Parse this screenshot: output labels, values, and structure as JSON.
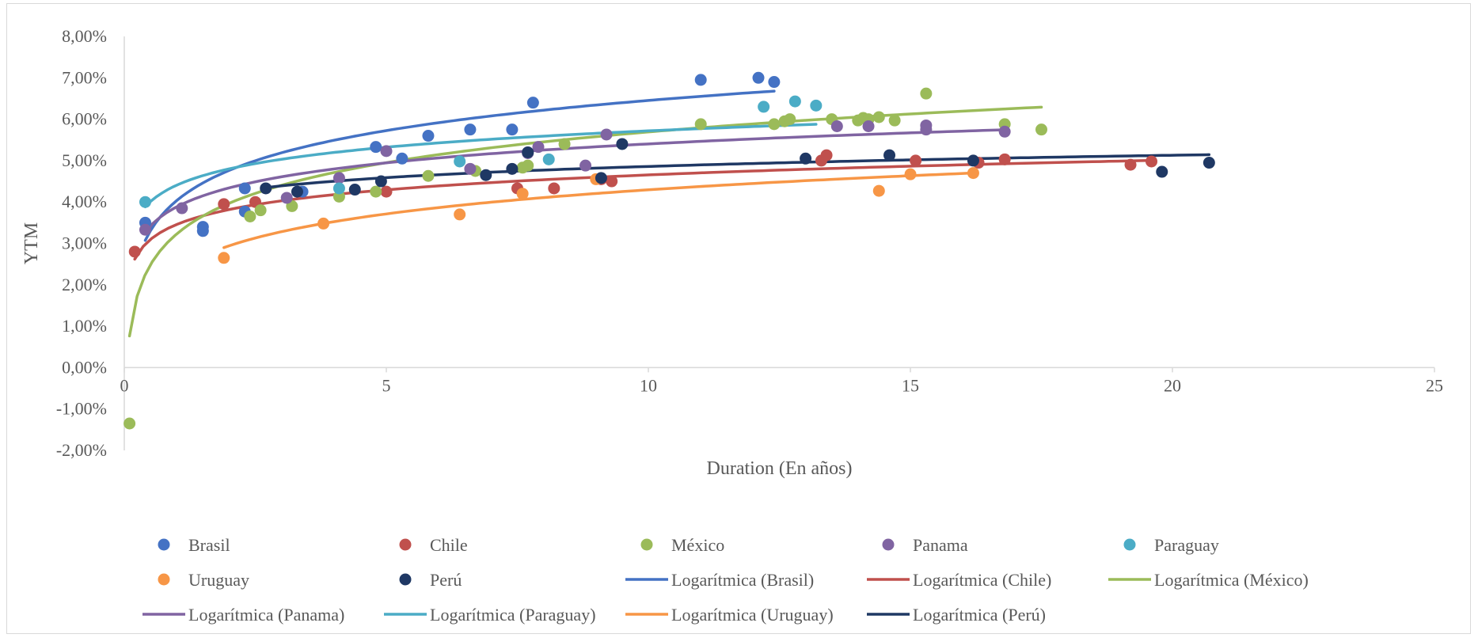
{
  "chart_data": {
    "type": "scatter",
    "title": "",
    "xlabel": "Duration (En años)",
    "ylabel": "YTM",
    "xlim": [
      0,
      25
    ],
    "ylim": [
      -0.02,
      0.08
    ],
    "x_ticks": [
      0,
      5,
      10,
      15,
      20,
      25
    ],
    "x_tick_labels": [
      "0",
      "5",
      "10",
      "15",
      "20",
      "25"
    ],
    "y_ticks": [
      -0.02,
      -0.01,
      0,
      0.01,
      0.02,
      0.03,
      0.04,
      0.05,
      0.06,
      0.07,
      0.08
    ],
    "y_tick_labels": [
      "-2,00%",
      "-1,00%",
      "0,00%",
      "1,00%",
      "2,00%",
      "3,00%",
      "4,00%",
      "5,00%",
      "6,00%",
      "7,00%",
      "8,00%"
    ],
    "grid": false,
    "legend_position": "bottom",
    "series": [
      {
        "name": "Brasil",
        "color": "#4472c4",
        "points": [
          [
            0.4,
            0.035
          ],
          [
            1.5,
            0.034
          ],
          [
            1.5,
            0.033
          ],
          [
            2.3,
            0.0433
          ],
          [
            2.3,
            0.0377
          ],
          [
            3.4,
            0.0425
          ],
          [
            4.8,
            0.0533
          ],
          [
            5.3,
            0.0505
          ],
          [
            5.8,
            0.056
          ],
          [
            6.6,
            0.0575
          ],
          [
            7.4,
            0.0575
          ],
          [
            7.8,
            0.064
          ],
          [
            11.0,
            0.0695
          ],
          [
            12.1,
            0.07
          ],
          [
            12.4,
            0.069
          ]
        ]
      },
      {
        "name": "Chile",
        "color": "#c0504d",
        "points": [
          [
            0.2,
            0.028
          ],
          [
            1.9,
            0.0395
          ],
          [
            2.5,
            0.04
          ],
          [
            5.0,
            0.0425
          ],
          [
            7.5,
            0.0433
          ],
          [
            8.2,
            0.0433
          ],
          [
            9.1,
            0.0455
          ],
          [
            9.3,
            0.045
          ],
          [
            13.3,
            0.05
          ],
          [
            13.4,
            0.0513
          ],
          [
            15.1,
            0.05
          ],
          [
            16.3,
            0.0495
          ],
          [
            16.8,
            0.0503
          ],
          [
            19.2,
            0.049
          ],
          [
            19.6,
            0.0498
          ]
        ]
      },
      {
        "name": "México",
        "color": "#9bbb59",
        "points": [
          [
            0.1,
            -0.0135
          ],
          [
            2.4,
            0.0365
          ],
          [
            2.6,
            0.038
          ],
          [
            3.2,
            0.039
          ],
          [
            4.1,
            0.0413
          ],
          [
            4.8,
            0.0425
          ],
          [
            5.8,
            0.0463
          ],
          [
            6.7,
            0.0475
          ],
          [
            7.6,
            0.0483
          ],
          [
            7.7,
            0.0488
          ],
          [
            8.4,
            0.054
          ],
          [
            11.0,
            0.0588
          ],
          [
            12.4,
            0.0588
          ],
          [
            12.6,
            0.0595
          ],
          [
            12.7,
            0.06
          ],
          [
            13.5,
            0.06
          ],
          [
            14.0,
            0.0597
          ],
          [
            14.1,
            0.0603
          ],
          [
            14.2,
            0.06
          ],
          [
            14.4,
            0.0605
          ],
          [
            14.7,
            0.0597
          ],
          [
            15.3,
            0.0662
          ],
          [
            16.8,
            0.0588
          ],
          [
            17.5,
            0.0575
          ]
        ]
      },
      {
        "name": "Panama",
        "color": "#8064a2",
        "points": [
          [
            0.4,
            0.0333
          ],
          [
            1.1,
            0.0385
          ],
          [
            3.1,
            0.041
          ],
          [
            4.1,
            0.0458
          ],
          [
            5.0,
            0.0523
          ],
          [
            6.6,
            0.048
          ],
          [
            7.7,
            0.0518
          ],
          [
            7.9,
            0.0533
          ],
          [
            8.8,
            0.0488
          ],
          [
            9.2,
            0.0563
          ],
          [
            13.6,
            0.0583
          ],
          [
            14.2,
            0.0583
          ],
          [
            15.3,
            0.0585
          ],
          [
            15.3,
            0.0575
          ],
          [
            16.8,
            0.057
          ]
        ]
      },
      {
        "name": "Paraguay",
        "color": "#4bacc6",
        "points": [
          [
            0.4,
            0.04
          ],
          [
            4.1,
            0.0433
          ],
          [
            6.4,
            0.0498
          ],
          [
            8.1,
            0.0503
          ],
          [
            12.2,
            0.063
          ],
          [
            12.8,
            0.0643
          ],
          [
            13.2,
            0.0633
          ]
        ]
      },
      {
        "name": "Uruguay",
        "color": "#f79646",
        "points": [
          [
            1.9,
            0.0265
          ],
          [
            3.8,
            0.0348
          ],
          [
            6.4,
            0.037
          ],
          [
            7.6,
            0.042
          ],
          [
            9.0,
            0.0455
          ],
          [
            14.4,
            0.0427
          ],
          [
            15.0,
            0.0467
          ],
          [
            16.2,
            0.047
          ]
        ]
      },
      {
        "name": "Perú",
        "color": "#1f3864",
        "points": [
          [
            2.7,
            0.0433
          ],
          [
            3.3,
            0.0425
          ],
          [
            4.4,
            0.043
          ],
          [
            4.9,
            0.045
          ],
          [
            6.9,
            0.0465
          ],
          [
            7.4,
            0.048
          ],
          [
            7.7,
            0.052
          ],
          [
            9.1,
            0.0458
          ],
          [
            9.5,
            0.054
          ],
          [
            13.0,
            0.0505
          ],
          [
            14.6,
            0.0513
          ],
          [
            16.2,
            0.05
          ],
          [
            19.8,
            0.0473
          ],
          [
            20.7,
            0.0495
          ]
        ]
      }
    ],
    "trendlines": [
      {
        "name": "Logarítmica (Brasil)",
        "color": "#4472c4",
        "type": "log",
        "a": 0.04035,
        "b": 0.0105,
        "x_range": [
          0.4,
          12.4
        ]
      },
      {
        "name": "Logarítmica (Chile)",
        "color": "#c0504d",
        "type": "log",
        "a": 0.03457,
        "b": 0.0052,
        "x_range": [
          0.2,
          19.6
        ]
      },
      {
        "name": "Logarítmica (México)",
        "color": "#9bbb59",
        "type": "log",
        "a": 0.03228,
        "b": 0.0107,
        "x_range": [
          0.1,
          17.5
        ]
      },
      {
        "name": "Logarítmica (Panama)",
        "color": "#8064a2",
        "type": "log",
        "a": 0.03883,
        "b": 0.0066,
        "x_range": [
          0.4,
          16.8
        ]
      },
      {
        "name": "Logarítmica (Paraguay)",
        "color": "#4bacc6",
        "type": "log",
        "a": 0.04406,
        "b": 0.0057,
        "x_range": [
          0.4,
          13.2
        ]
      },
      {
        "name": "Logarítmica (Uruguay)",
        "color": "#f79646",
        "type": "log",
        "a": 0.0236,
        "b": 0.0084,
        "x_range": [
          1.9,
          16.2
        ]
      },
      {
        "name": "Logarítmica (Perú)",
        "color": "#1f3864",
        "type": "log",
        "a": 0.03961,
        "b": 0.0039,
        "x_range": [
          2.7,
          20.7
        ]
      }
    ]
  }
}
